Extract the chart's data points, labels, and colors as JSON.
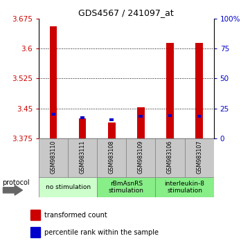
{
  "title": "GDS4567 / 241097_at",
  "samples": [
    "GSM983110",
    "GSM983111",
    "GSM983108",
    "GSM983109",
    "GSM983106",
    "GSM983107"
  ],
  "red_values": [
    3.655,
    3.425,
    3.415,
    3.452,
    3.614,
    3.614
  ],
  "blue_values": [
    3.435,
    3.427,
    3.422,
    3.43,
    3.432,
    3.43
  ],
  "y_min": 3.375,
  "y_max": 3.675,
  "y_ticks": [
    3.375,
    3.45,
    3.525,
    3.6,
    3.675
  ],
  "right_ticks": [
    0,
    25,
    50,
    75,
    100
  ],
  "right_tick_labels": [
    "0",
    "25",
    "50",
    "75",
    "100%"
  ],
  "groups": [
    {
      "label": "no stimulation",
      "cols": [
        0,
        1
      ],
      "color": "#ccffcc"
    },
    {
      "label": "rBmAsnRS\nstimulation",
      "cols": [
        2,
        3
      ],
      "color": "#99ee99"
    },
    {
      "label": "interleukin-8\nstimulation",
      "cols": [
        4,
        5
      ],
      "color": "#99ee99"
    }
  ],
  "red_color": "#cc0000",
  "blue_color": "#0000cc",
  "legend_red": "transformed count",
  "legend_blue": "percentile rank within the sample",
  "protocol_label": "protocol",
  "bar_bottom": 3.375,
  "bar_width": 0.25,
  "blue_bar_height": 0.007,
  "sample_box_color": "#c8c8c8",
  "group_no_stim_color": "#ccffcc",
  "group_stim_color": "#88ee88"
}
